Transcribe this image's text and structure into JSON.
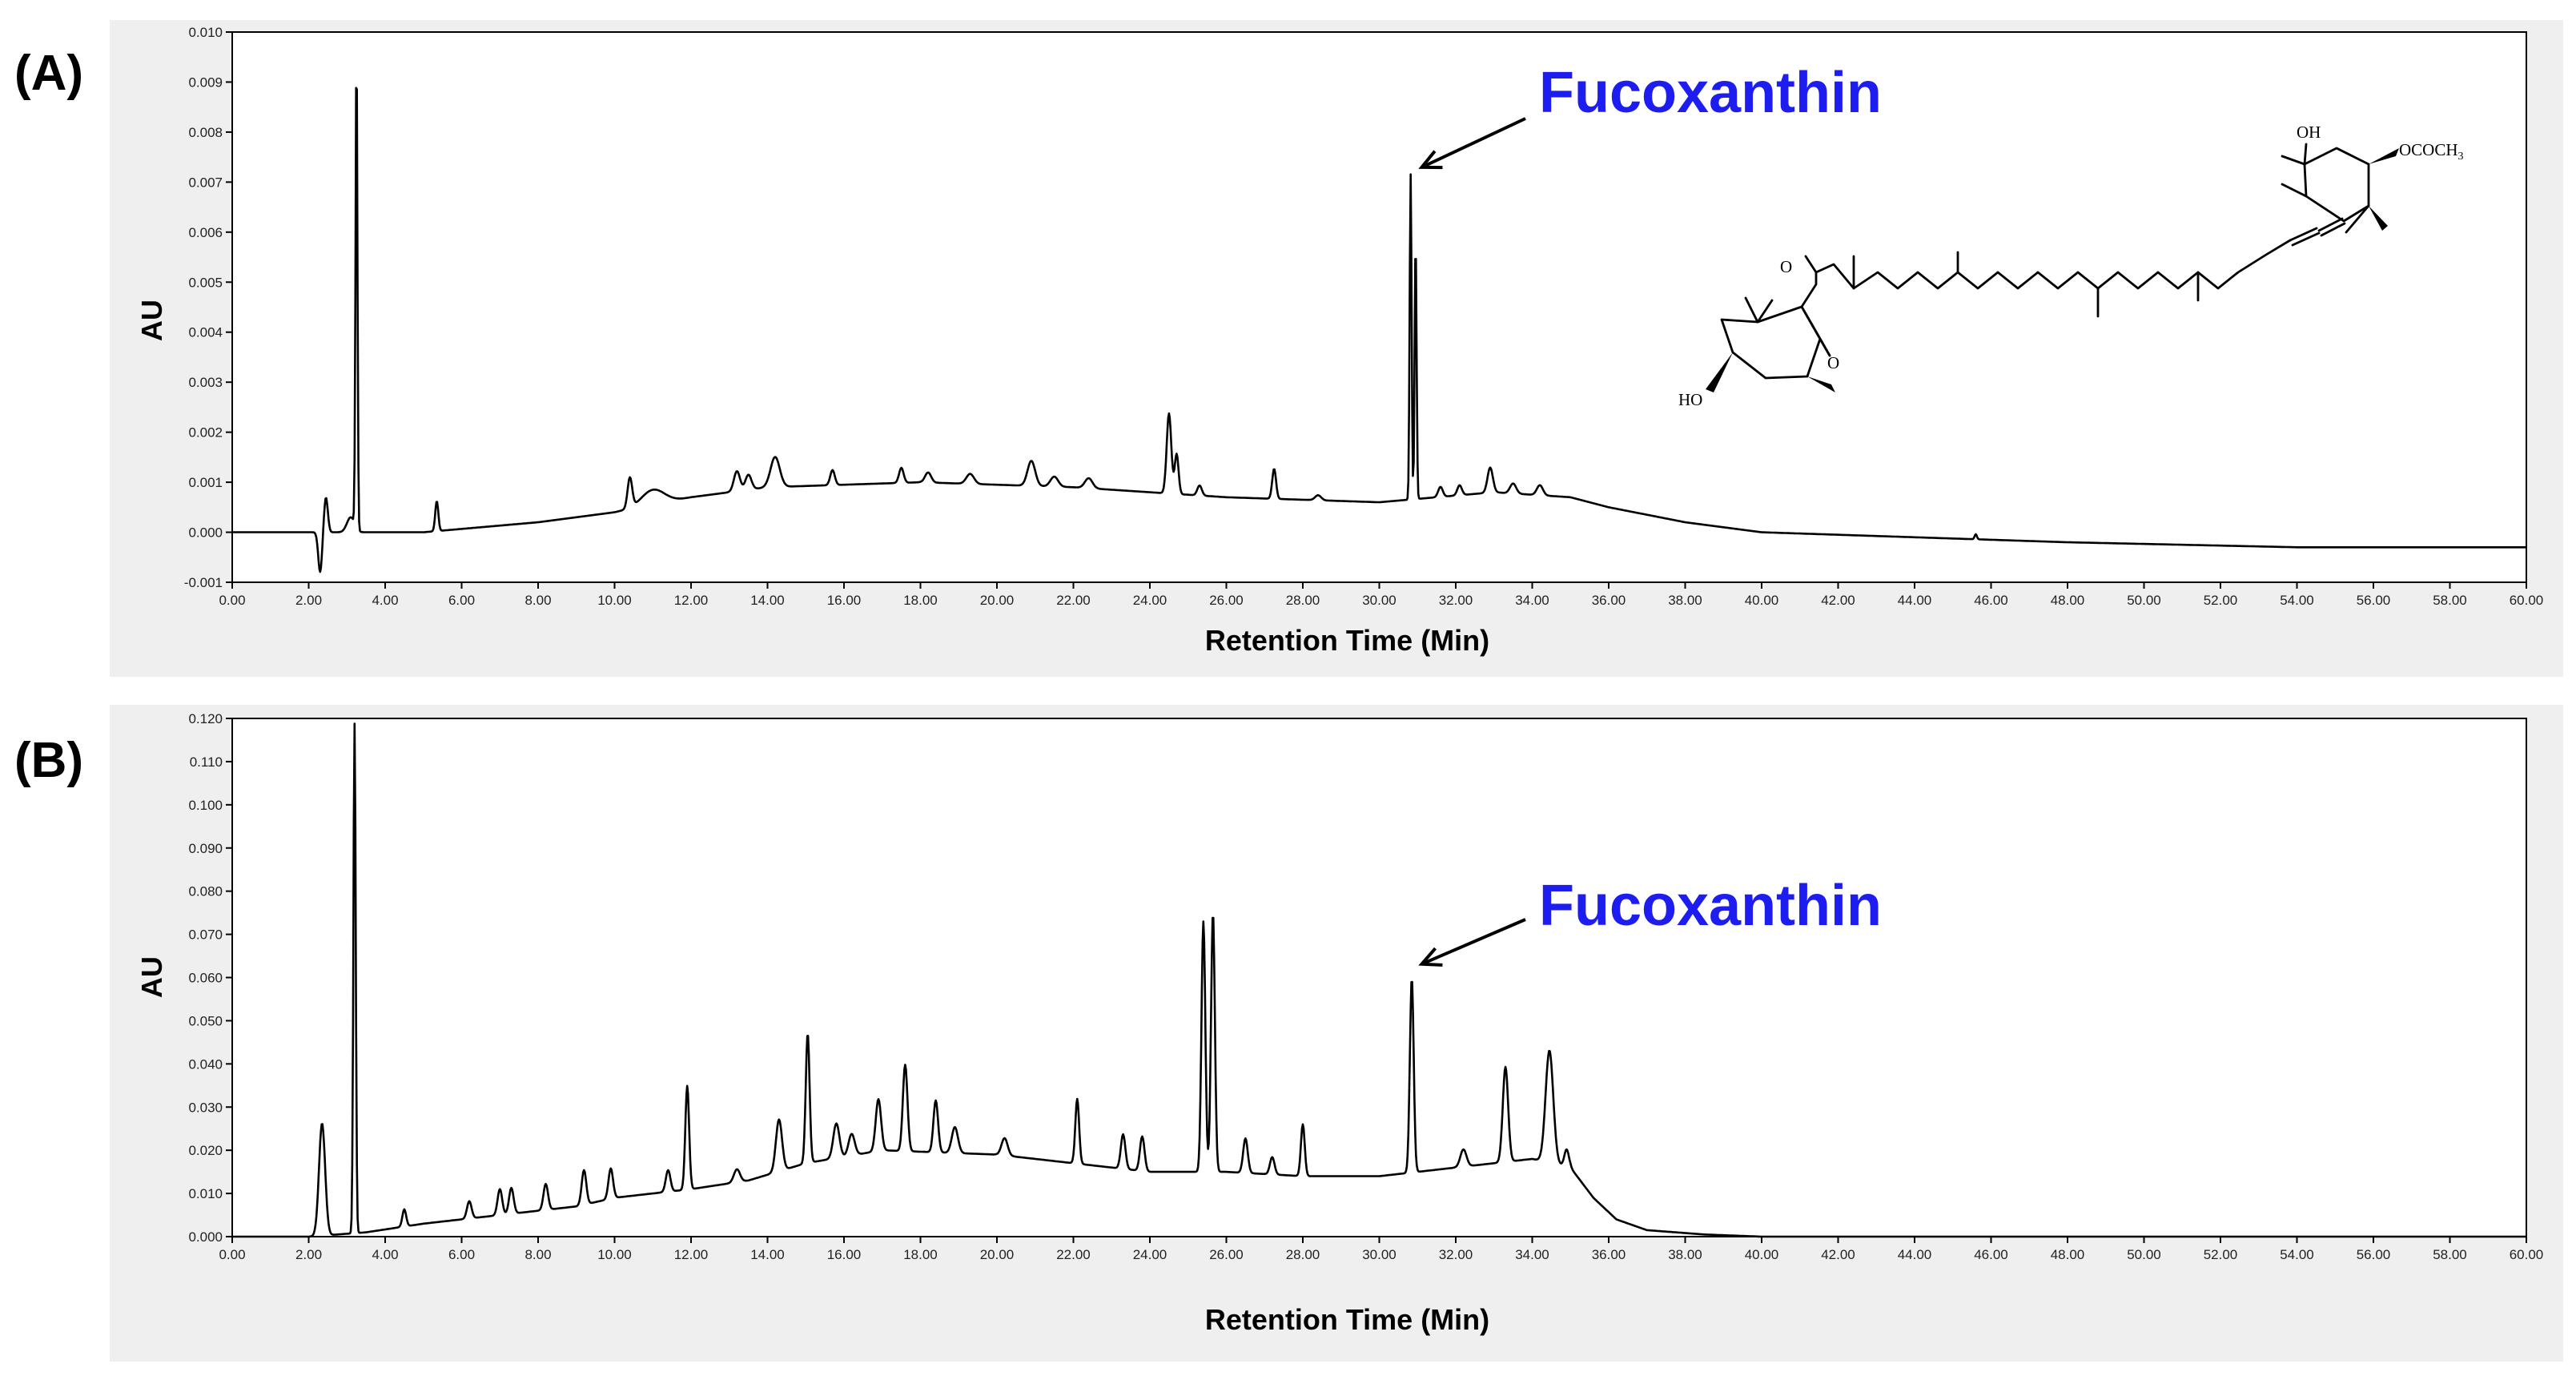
{
  "chart_data": [
    {
      "type": "line",
      "panel_label": "(A)",
      "xlabel": "Retention Time (Min)",
      "ylabel": "AU",
      "xlim": [
        0,
        60
      ],
      "ylim": [
        -0.001,
        0.01
      ],
      "x_ticks": [
        "0.00",
        "2.00",
        "4.00",
        "6.00",
        "8.00",
        "10.00",
        "12.00",
        "14.00",
        "16.00",
        "18.00",
        "20.00",
        "22.00",
        "24.00",
        "26.00",
        "28.00",
        "30.00",
        "32.00",
        "34.00",
        "36.00",
        "38.00",
        "40.00",
        "42.00",
        "44.00",
        "46.00",
        "48.00",
        "50.00",
        "52.00",
        "54.00",
        "56.00",
        "58.00",
        "60.00"
      ],
      "y_ticks": [
        "-0.001",
        "0.000",
        "0.001",
        "0.002",
        "0.003",
        "0.004",
        "0.005",
        "0.006",
        "0.007",
        "0.008",
        "0.009",
        "0.010"
      ],
      "annotation": {
        "text": "Fucoxanthin",
        "x": 30.9,
        "y": 0.0072
      },
      "baseline": [
        [
          0,
          0.0
        ],
        [
          2.0,
          0.0
        ],
        [
          5.0,
          0.0
        ],
        [
          8.0,
          0.0002
        ],
        [
          10.0,
          0.0004
        ],
        [
          12.0,
          0.0007
        ],
        [
          14.0,
          0.0009
        ],
        [
          18.0,
          0.001
        ],
        [
          22.0,
          0.0009
        ],
        [
          26.0,
          0.0007
        ],
        [
          30.0,
          0.0006
        ],
        [
          33.0,
          0.0008
        ],
        [
          35.0,
          0.0007
        ],
        [
          36.0,
          0.0005
        ],
        [
          38.0,
          0.0002
        ],
        [
          40.0,
          0.0
        ],
        [
          44.0,
          -0.0001
        ],
        [
          48.0,
          -0.0002
        ],
        [
          54.0,
          -0.0003
        ],
        [
          60.0,
          -0.0003
        ]
      ],
      "peaks": [
        [
          2.3,
          -0.0008,
          0.05
        ],
        [
          2.45,
          0.0007,
          0.05
        ],
        [
          3.1,
          0.0003,
          0.1
        ],
        [
          3.25,
          0.0095,
          0.025
        ],
        [
          5.35,
          0.0006,
          0.04
        ],
        [
          10.4,
          0.0006,
          0.06
        ],
        [
          11.0,
          0.0003,
          0.3
        ],
        [
          13.2,
          0.0004,
          0.08
        ],
        [
          13.5,
          0.0003,
          0.08
        ],
        [
          14.2,
          0.0006,
          0.12
        ],
        [
          15.7,
          0.0003,
          0.06
        ],
        [
          17.5,
          0.0003,
          0.06
        ],
        [
          18.2,
          0.0002,
          0.08
        ],
        [
          19.3,
          0.0002,
          0.1
        ],
        [
          20.9,
          0.0005,
          0.1
        ],
        [
          21.5,
          0.0002,
          0.1
        ],
        [
          22.4,
          0.0002,
          0.1
        ],
        [
          24.5,
          0.0016,
          0.06
        ],
        [
          24.7,
          0.0008,
          0.05
        ],
        [
          25.3,
          0.0002,
          0.06
        ],
        [
          27.25,
          0.0006,
          0.05
        ],
        [
          28.4,
          0.0001,
          0.08
        ],
        [
          30.82,
          0.0065,
          0.025
        ],
        [
          30.95,
          0.0052,
          0.025
        ],
        [
          31.6,
          0.0002,
          0.06
        ],
        [
          32.1,
          0.0002,
          0.06
        ],
        [
          32.9,
          0.0005,
          0.07
        ],
        [
          33.5,
          0.0002,
          0.08
        ],
        [
          34.2,
          0.0002,
          0.08
        ],
        [
          45.6,
          0.0001,
          0.03
        ]
      ]
    },
    {
      "type": "line",
      "panel_label": "(B)",
      "xlabel": "Retention Time (Min)",
      "ylabel": "AU",
      "xlim": [
        0,
        60
      ],
      "ylim": [
        0,
        0.12
      ],
      "x_ticks": [
        "0.00",
        "2.00",
        "4.00",
        "6.00",
        "8.00",
        "10.00",
        "12.00",
        "14.00",
        "16.00",
        "18.00",
        "20.00",
        "22.00",
        "24.00",
        "26.00",
        "28.00",
        "30.00",
        "32.00",
        "34.00",
        "36.00",
        "38.00",
        "40.00",
        "42.00",
        "44.00",
        "46.00",
        "48.00",
        "50.00",
        "52.00",
        "54.00",
        "56.00",
        "58.00",
        "60.00"
      ],
      "y_ticks": [
        "0.000",
        "0.010",
        "0.020",
        "0.030",
        "0.040",
        "0.050",
        "0.060",
        "0.070",
        "0.080",
        "0.090",
        "0.100",
        "0.110",
        "0.120"
      ],
      "annotation": {
        "text": "Fucoxanthin",
        "x": 30.9,
        "y": 0.062
      },
      "baseline": [
        [
          0,
          0.0
        ],
        [
          2.0,
          0.0
        ],
        [
          3.5,
          0.001
        ],
        [
          5.0,
          0.003
        ],
        [
          7.0,
          0.005
        ],
        [
          9.0,
          0.007
        ],
        [
          10.0,
          0.009
        ],
        [
          12.0,
          0.011
        ],
        [
          13.5,
          0.013
        ],
        [
          15.0,
          0.017
        ],
        [
          17.0,
          0.02
        ],
        [
          20.0,
          0.019
        ],
        [
          22.0,
          0.017
        ],
        [
          24.0,
          0.015
        ],
        [
          26.0,
          0.015
        ],
        [
          28.0,
          0.014
        ],
        [
          30.0,
          0.014
        ],
        [
          32.0,
          0.016
        ],
        [
          34.0,
          0.018
        ],
        [
          35.0,
          0.016
        ],
        [
          35.6,
          0.009
        ],
        [
          36.2,
          0.004
        ],
        [
          37.0,
          0.0015
        ],
        [
          38.5,
          0.0005
        ],
        [
          40.0,
          0.0
        ],
        [
          60.0,
          0.0
        ]
      ],
      "peaks": [
        [
          2.35,
          0.026,
          0.08
        ],
        [
          3.2,
          0.118,
          0.03
        ],
        [
          4.5,
          0.004,
          0.05
        ],
        [
          6.2,
          0.004,
          0.06
        ],
        [
          7.0,
          0.006,
          0.06
        ],
        [
          7.3,
          0.006,
          0.06
        ],
        [
          8.2,
          0.006,
          0.06
        ],
        [
          9.2,
          0.008,
          0.06
        ],
        [
          9.9,
          0.007,
          0.06
        ],
        [
          11.4,
          0.005,
          0.06
        ],
        [
          11.9,
          0.024,
          0.05
        ],
        [
          13.2,
          0.003,
          0.08
        ],
        [
          14.3,
          0.012,
          0.08
        ],
        [
          15.05,
          0.03,
          0.05
        ],
        [
          15.8,
          0.008,
          0.08
        ],
        [
          16.2,
          0.005,
          0.08
        ],
        [
          16.9,
          0.012,
          0.07
        ],
        [
          17.6,
          0.02,
          0.06
        ],
        [
          18.4,
          0.012,
          0.06
        ],
        [
          18.9,
          0.006,
          0.08
        ],
        [
          20.2,
          0.004,
          0.08
        ],
        [
          22.1,
          0.015,
          0.05
        ],
        [
          23.3,
          0.008,
          0.06
        ],
        [
          23.8,
          0.008,
          0.06
        ],
        [
          25.4,
          0.058,
          0.05
        ],
        [
          25.65,
          0.06,
          0.05
        ],
        [
          26.5,
          0.008,
          0.06
        ],
        [
          27.2,
          0.004,
          0.06
        ],
        [
          28.0,
          0.012,
          0.05
        ],
        [
          30.85,
          0.045,
          0.05
        ],
        [
          32.2,
          0.004,
          0.08
        ],
        [
          33.3,
          0.022,
          0.07
        ],
        [
          34.45,
          0.026,
          0.1
        ],
        [
          34.9,
          0.004,
          0.06
        ]
      ]
    }
  ],
  "structure_labels": {
    "oh_top": "OH",
    "acetate": "OCOCH",
    "acetate_sub": "3",
    "ho_bottom": "HO",
    "o_epoxide": "O",
    "o_ketone": "O"
  }
}
